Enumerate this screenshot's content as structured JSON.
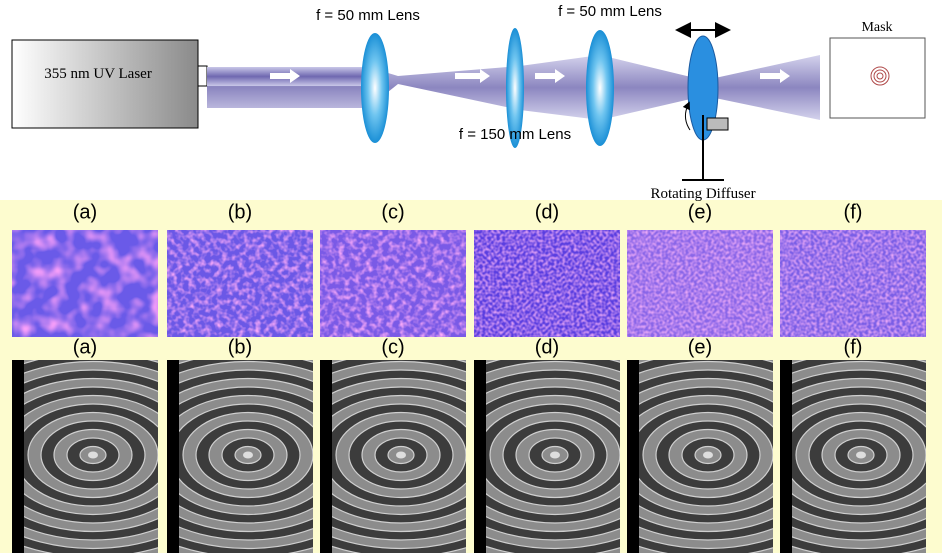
{
  "diagram": {
    "laser": "355 nm UV Laser",
    "lenses": [
      "f = 50 mm Lens",
      "f = 150 mm Lens",
      "f = 50 mm Lens"
    ],
    "diffuser": "Rotating Diffuser",
    "mask": "Mask"
  },
  "speckle_panels": [
    "(a)",
    "(b)",
    "(c)",
    "(d)",
    "(e)",
    "(f)"
  ],
  "sem_panels": [
    "(a)",
    "(b)",
    "(c)",
    "(d)",
    "(e)",
    "(f)"
  ]
}
